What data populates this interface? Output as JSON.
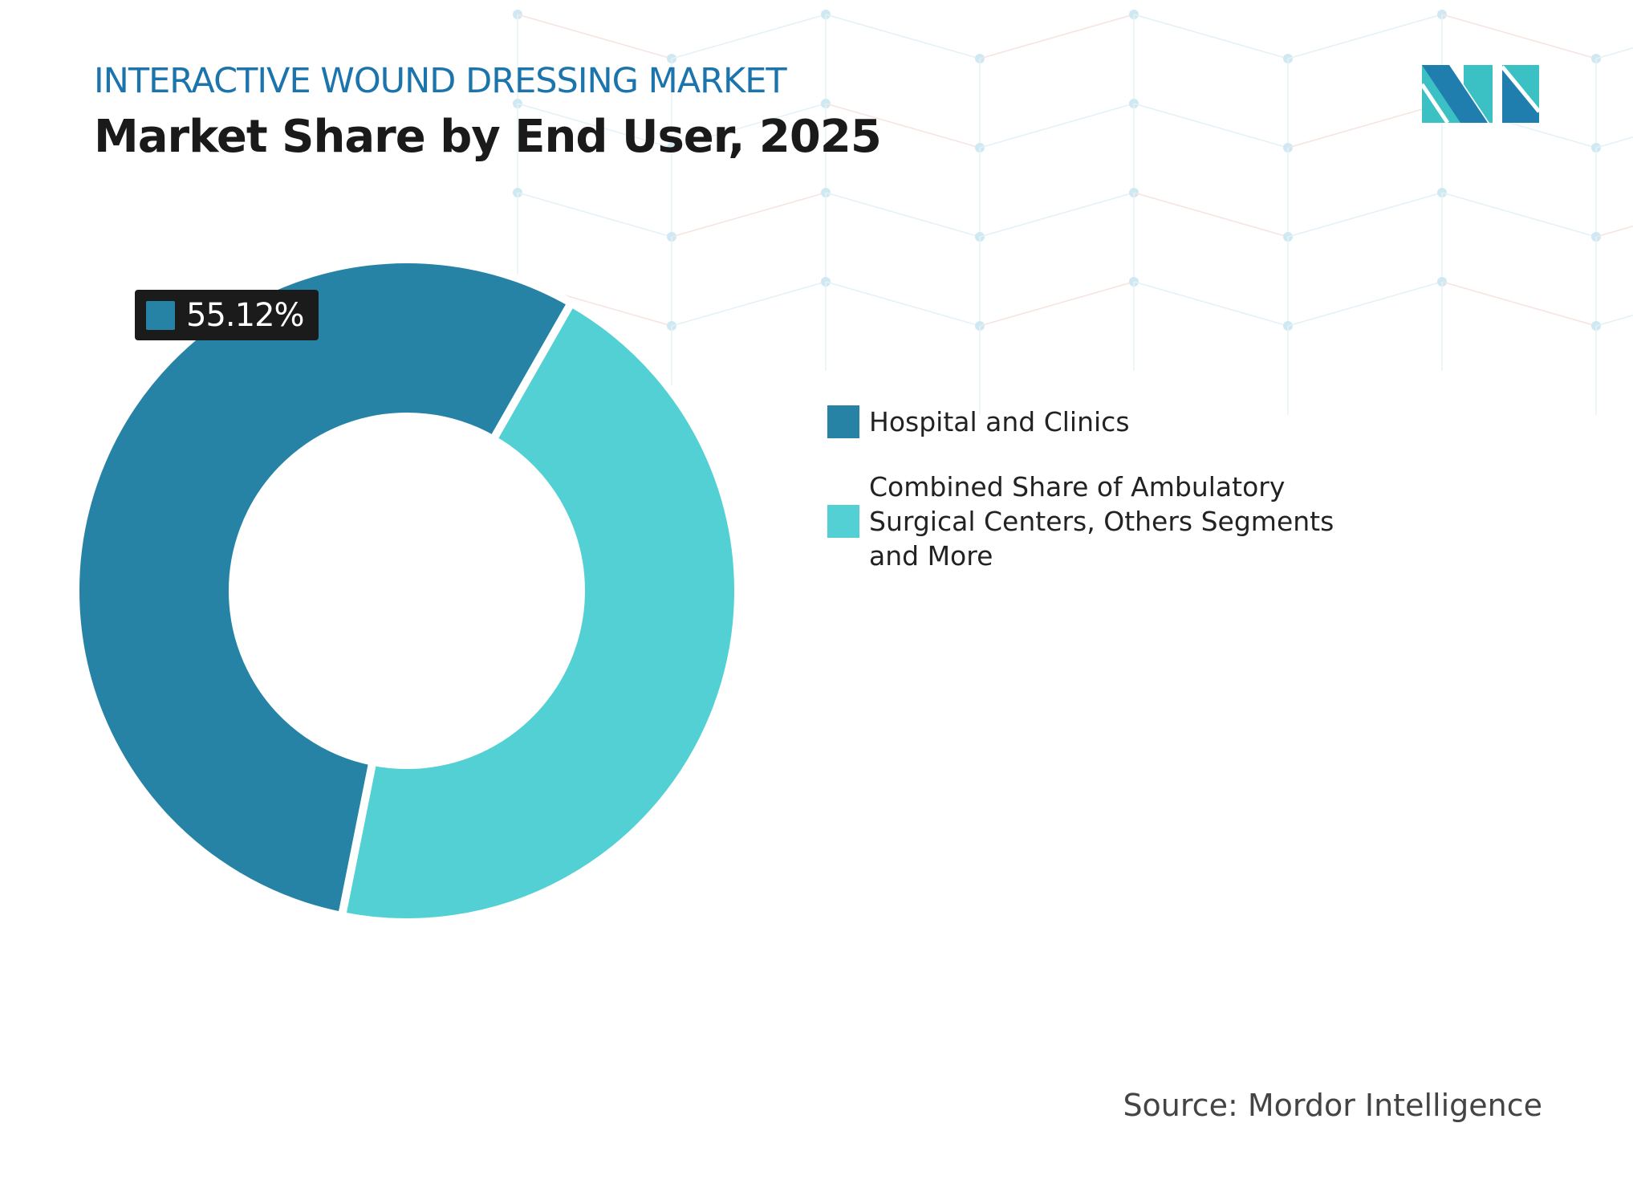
{
  "header": {
    "subtitle": "INTERACTIVE WOUND DRESSING MARKET",
    "title": "Market Share by End User, 2025"
  },
  "colors": {
    "hospital": "#2683a6",
    "combined": "#52d0d3",
    "title_blue": "#1c74ad"
  },
  "chart_data": {
    "type": "pie",
    "variant": "donut",
    "title": "Market Share by End User, 2025",
    "categories": [
      "Hospital and Clinics",
      "Combined Share of Ambulatory Surgical Centers, Others Segments and More"
    ],
    "values": [
      55.12,
      44.88
    ],
    "unit": "%",
    "data_labels": [
      "55.12%"
    ],
    "legend_position": "right"
  },
  "source": "Source: Mordor Intelligence",
  "logo": {
    "text": "MI"
  }
}
